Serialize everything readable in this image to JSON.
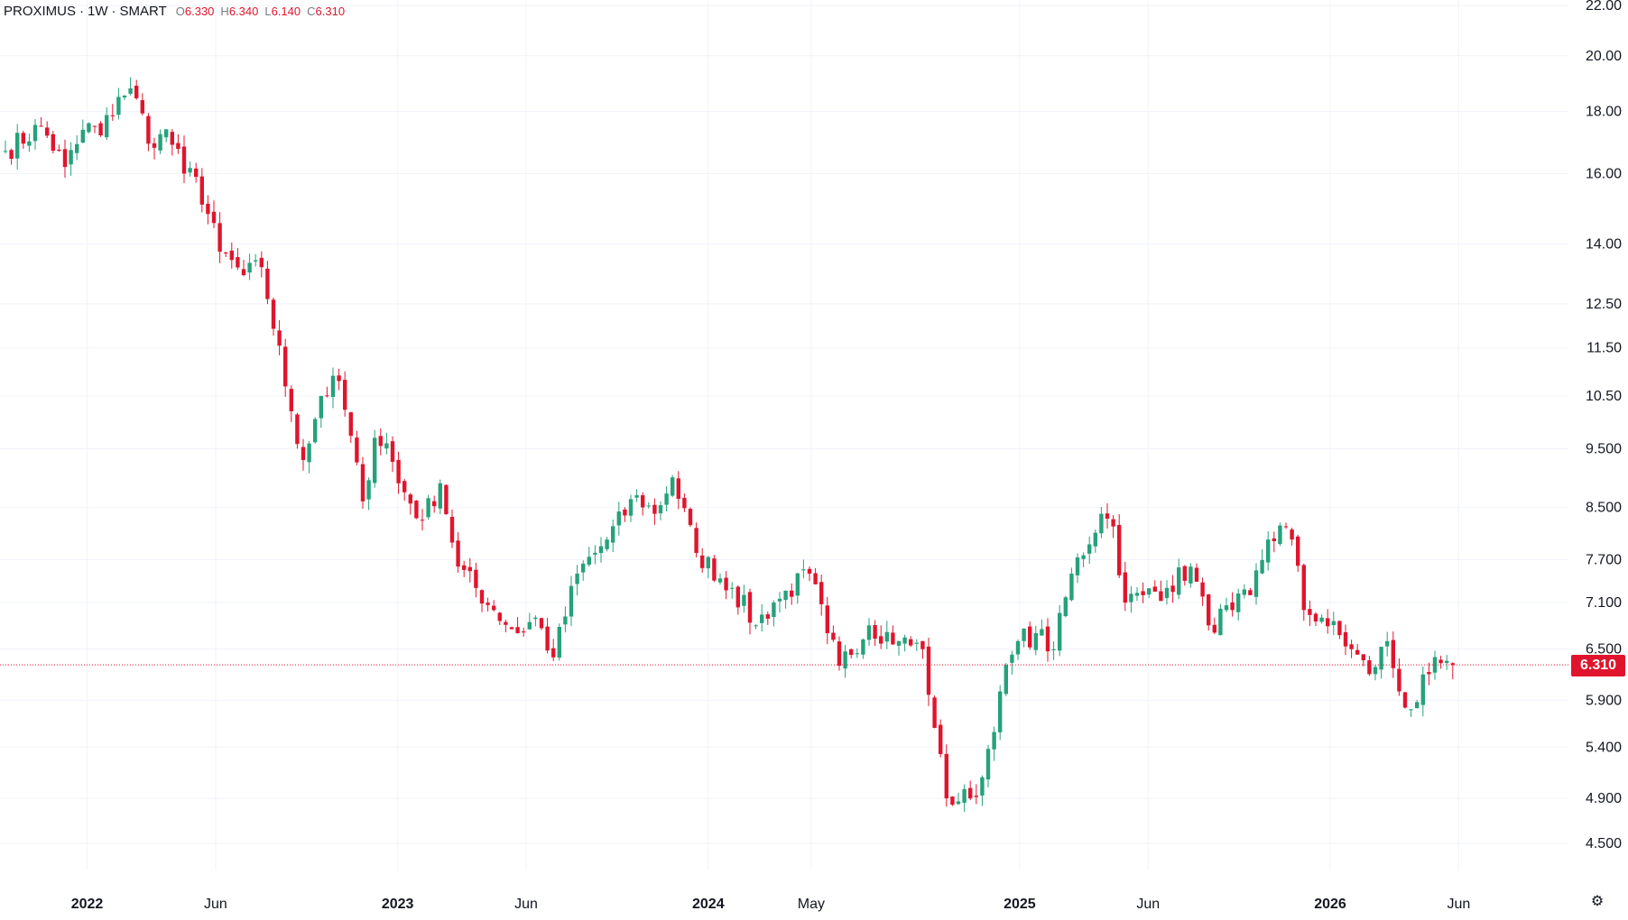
{
  "header": {
    "symbol": "PROXIMUS",
    "separator": "·",
    "interval": "1W",
    "exchange": "SMART",
    "open_label": "O",
    "open": "6.330",
    "high_label": "H",
    "high": "6.340",
    "low_label": "L",
    "low": "6.140",
    "close_label": "C",
    "close": "6.310"
  },
  "last_price_label": "6.310",
  "settings_icon": "gear-icon",
  "colors": {
    "up": "#26a17b",
    "down": "#e0152d",
    "grid": "#f0f3fa",
    "text": "#131722"
  },
  "chart_data": {
    "type": "candlestick",
    "interval": "1W",
    "y_scale": "log",
    "ylim": [
      4.2,
      22.0
    ],
    "y_ticks": [
      22.0,
      20.0,
      18.0,
      16.0,
      14.0,
      12.5,
      11.5,
      10.5,
      9.5,
      8.5,
      7.7,
      7.1,
      6.5,
      5.9,
      5.4,
      4.9,
      4.5
    ],
    "y_tick_labels": [
      "22.00",
      "20.00",
      "18.00",
      "16.00",
      "14.00",
      "12.50",
      "11.50",
      "10.50",
      "9.500",
      "8.500",
      "7.700",
      "7.100",
      "6.500",
      "5.900",
      "5.400",
      "4.900",
      "4.500"
    ],
    "x_ticks": [
      {
        "label": "2022",
        "date": "2022-01-01",
        "bold": true
      },
      {
        "label": "Jun",
        "date": "2022-06-01",
        "bold": false
      },
      {
        "label": "2023",
        "date": "2023-01-01",
        "bold": true
      },
      {
        "label": "Jun",
        "date": "2023-06-01",
        "bold": false
      },
      {
        "label": "2024",
        "date": "2024-01-01",
        "bold": true
      },
      {
        "label": "May",
        "date": "2024-05-01",
        "bold": false
      },
      {
        "label": "2025",
        "date": "2025-01-01",
        "bold": true
      },
      {
        "label": "Jun",
        "date": "2025-06-01",
        "bold": false
      },
      {
        "label": "2026",
        "date": "2026-01-01",
        "bold": true
      },
      {
        "label": "Jun",
        "date": "2026-06-01",
        "bold": false
      }
    ],
    "start_date": "2021-09-27",
    "last_price": 6.31,
    "close_path": [
      [
        0,
        16.7
      ],
      [
        6,
        17.5
      ],
      [
        10,
        16.2
      ],
      [
        14,
        17.6
      ],
      [
        16,
        17.2
      ],
      [
        19,
        18.5
      ],
      [
        21,
        18.8
      ],
      [
        25,
        16.8
      ],
      [
        27,
        17.4
      ],
      [
        30,
        16.0
      ],
      [
        32,
        15.9
      ],
      [
        36,
        13.8
      ],
      [
        40,
        13.2
      ],
      [
        43,
        13.4
      ],
      [
        48,
        10.2
      ],
      [
        50,
        9.3
      ],
      [
        53,
        10.5
      ],
      [
        56,
        10.8
      ],
      [
        60,
        8.6
      ],
      [
        62,
        9.7
      ],
      [
        64,
        9.6
      ],
      [
        66,
        8.9
      ],
      [
        70,
        8.3
      ],
      [
        73,
        8.9
      ],
      [
        76,
        7.6
      ],
      [
        82,
        7.0
      ],
      [
        86,
        6.7
      ],
      [
        89,
        6.9
      ],
      [
        92,
        6.4
      ],
      [
        96,
        7.5
      ],
      [
        101,
        8.0
      ],
      [
        106,
        8.7
      ],
      [
        109,
        8.4
      ],
      [
        112,
        9.0
      ],
      [
        116,
        7.8
      ],
      [
        122,
        7.3
      ],
      [
        126,
        6.8
      ],
      [
        129,
        7.1
      ],
      [
        135,
        7.5
      ],
      [
        138,
        6.7
      ],
      [
        140,
        6.3
      ],
      [
        145,
        6.8
      ],
      [
        150,
        6.6
      ],
      [
        154,
        6.5
      ],
      [
        156,
        5.6
      ],
      [
        158,
        4.9
      ],
      [
        162,
        4.9
      ],
      [
        164,
        5.1
      ],
      [
        167,
        6.0
      ],
      [
        170,
        6.6
      ],
      [
        173,
        6.7
      ],
      [
        176,
        6.5
      ],
      [
        179,
        7.5
      ],
      [
        184,
        8.4
      ],
      [
        186,
        8.2
      ],
      [
        188,
        7.1
      ],
      [
        191,
        7.2
      ],
      [
        195,
        7.3
      ],
      [
        199,
        7.6
      ],
      [
        202,
        6.8
      ],
      [
        206,
        7.0
      ],
      [
        209,
        7.2
      ],
      [
        212,
        8.0
      ],
      [
        215,
        8.2
      ],
      [
        216,
        8.0
      ],
      [
        218,
        7.0
      ],
      [
        221,
        6.9
      ],
      [
        226,
        6.5
      ],
      [
        229,
        6.2
      ],
      [
        232,
        6.6
      ],
      [
        234,
        6.0
      ],
      [
        236,
        5.8
      ],
      [
        239,
        6.2
      ],
      [
        241,
        6.33
      ],
      [
        243,
        6.31
      ]
    ]
  }
}
